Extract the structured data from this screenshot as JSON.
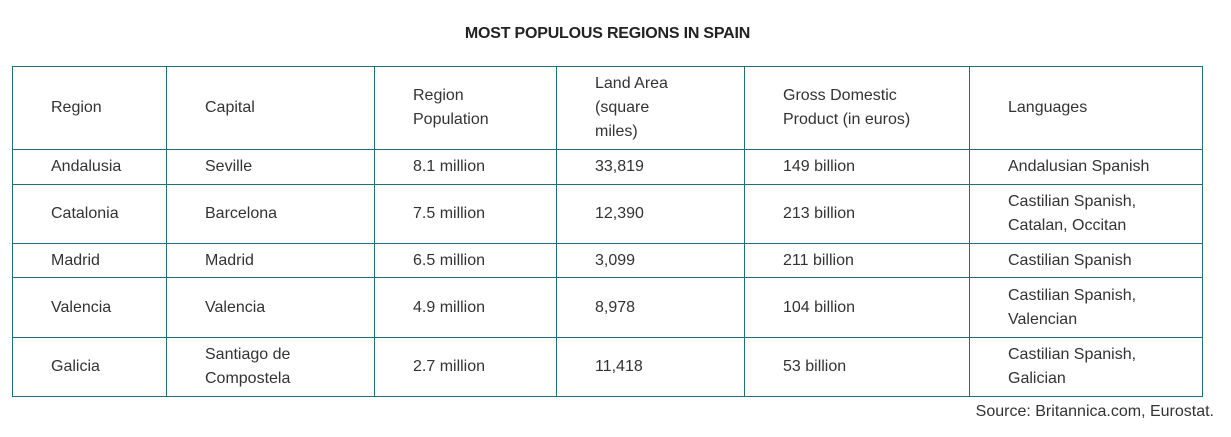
{
  "title": "MOST POPULOUS REGIONS IN SPAIN",
  "table": {
    "headers": [
      "Region",
      "Capital",
      "Region Population",
      "Land Area (square miles)",
      "Gross Domestic Product (in euros)",
      "Languages"
    ],
    "rows": [
      [
        "Andalusia",
        "Seville",
        "8.1 million",
        "33,819",
        "149 billion",
        "Andalusian Spanish"
      ],
      [
        "Catalonia",
        "Barcelona",
        "7.5 million",
        "12,390",
        "213 billion",
        "Castilian Spanish, Catalan, Occitan"
      ],
      [
        "Madrid",
        "Madrid",
        "6.5 million",
        "3,099",
        "211 billion",
        "Castilian Spanish"
      ],
      [
        "Valencia",
        "Valencia",
        "4.9 million",
        "8,978",
        "104 billion",
        "Castilian Spanish, Valencian"
      ],
      [
        "Galicia",
        "Santiago de Compostela",
        "2.7 million",
        "11,418",
        "53 billion",
        "Castilian Spanish, Galician"
      ]
    ]
  },
  "source": "Source: Britannica.com, Eurostat.",
  "colors": {
    "border": "#1f6f7a",
    "text": "#333333"
  }
}
